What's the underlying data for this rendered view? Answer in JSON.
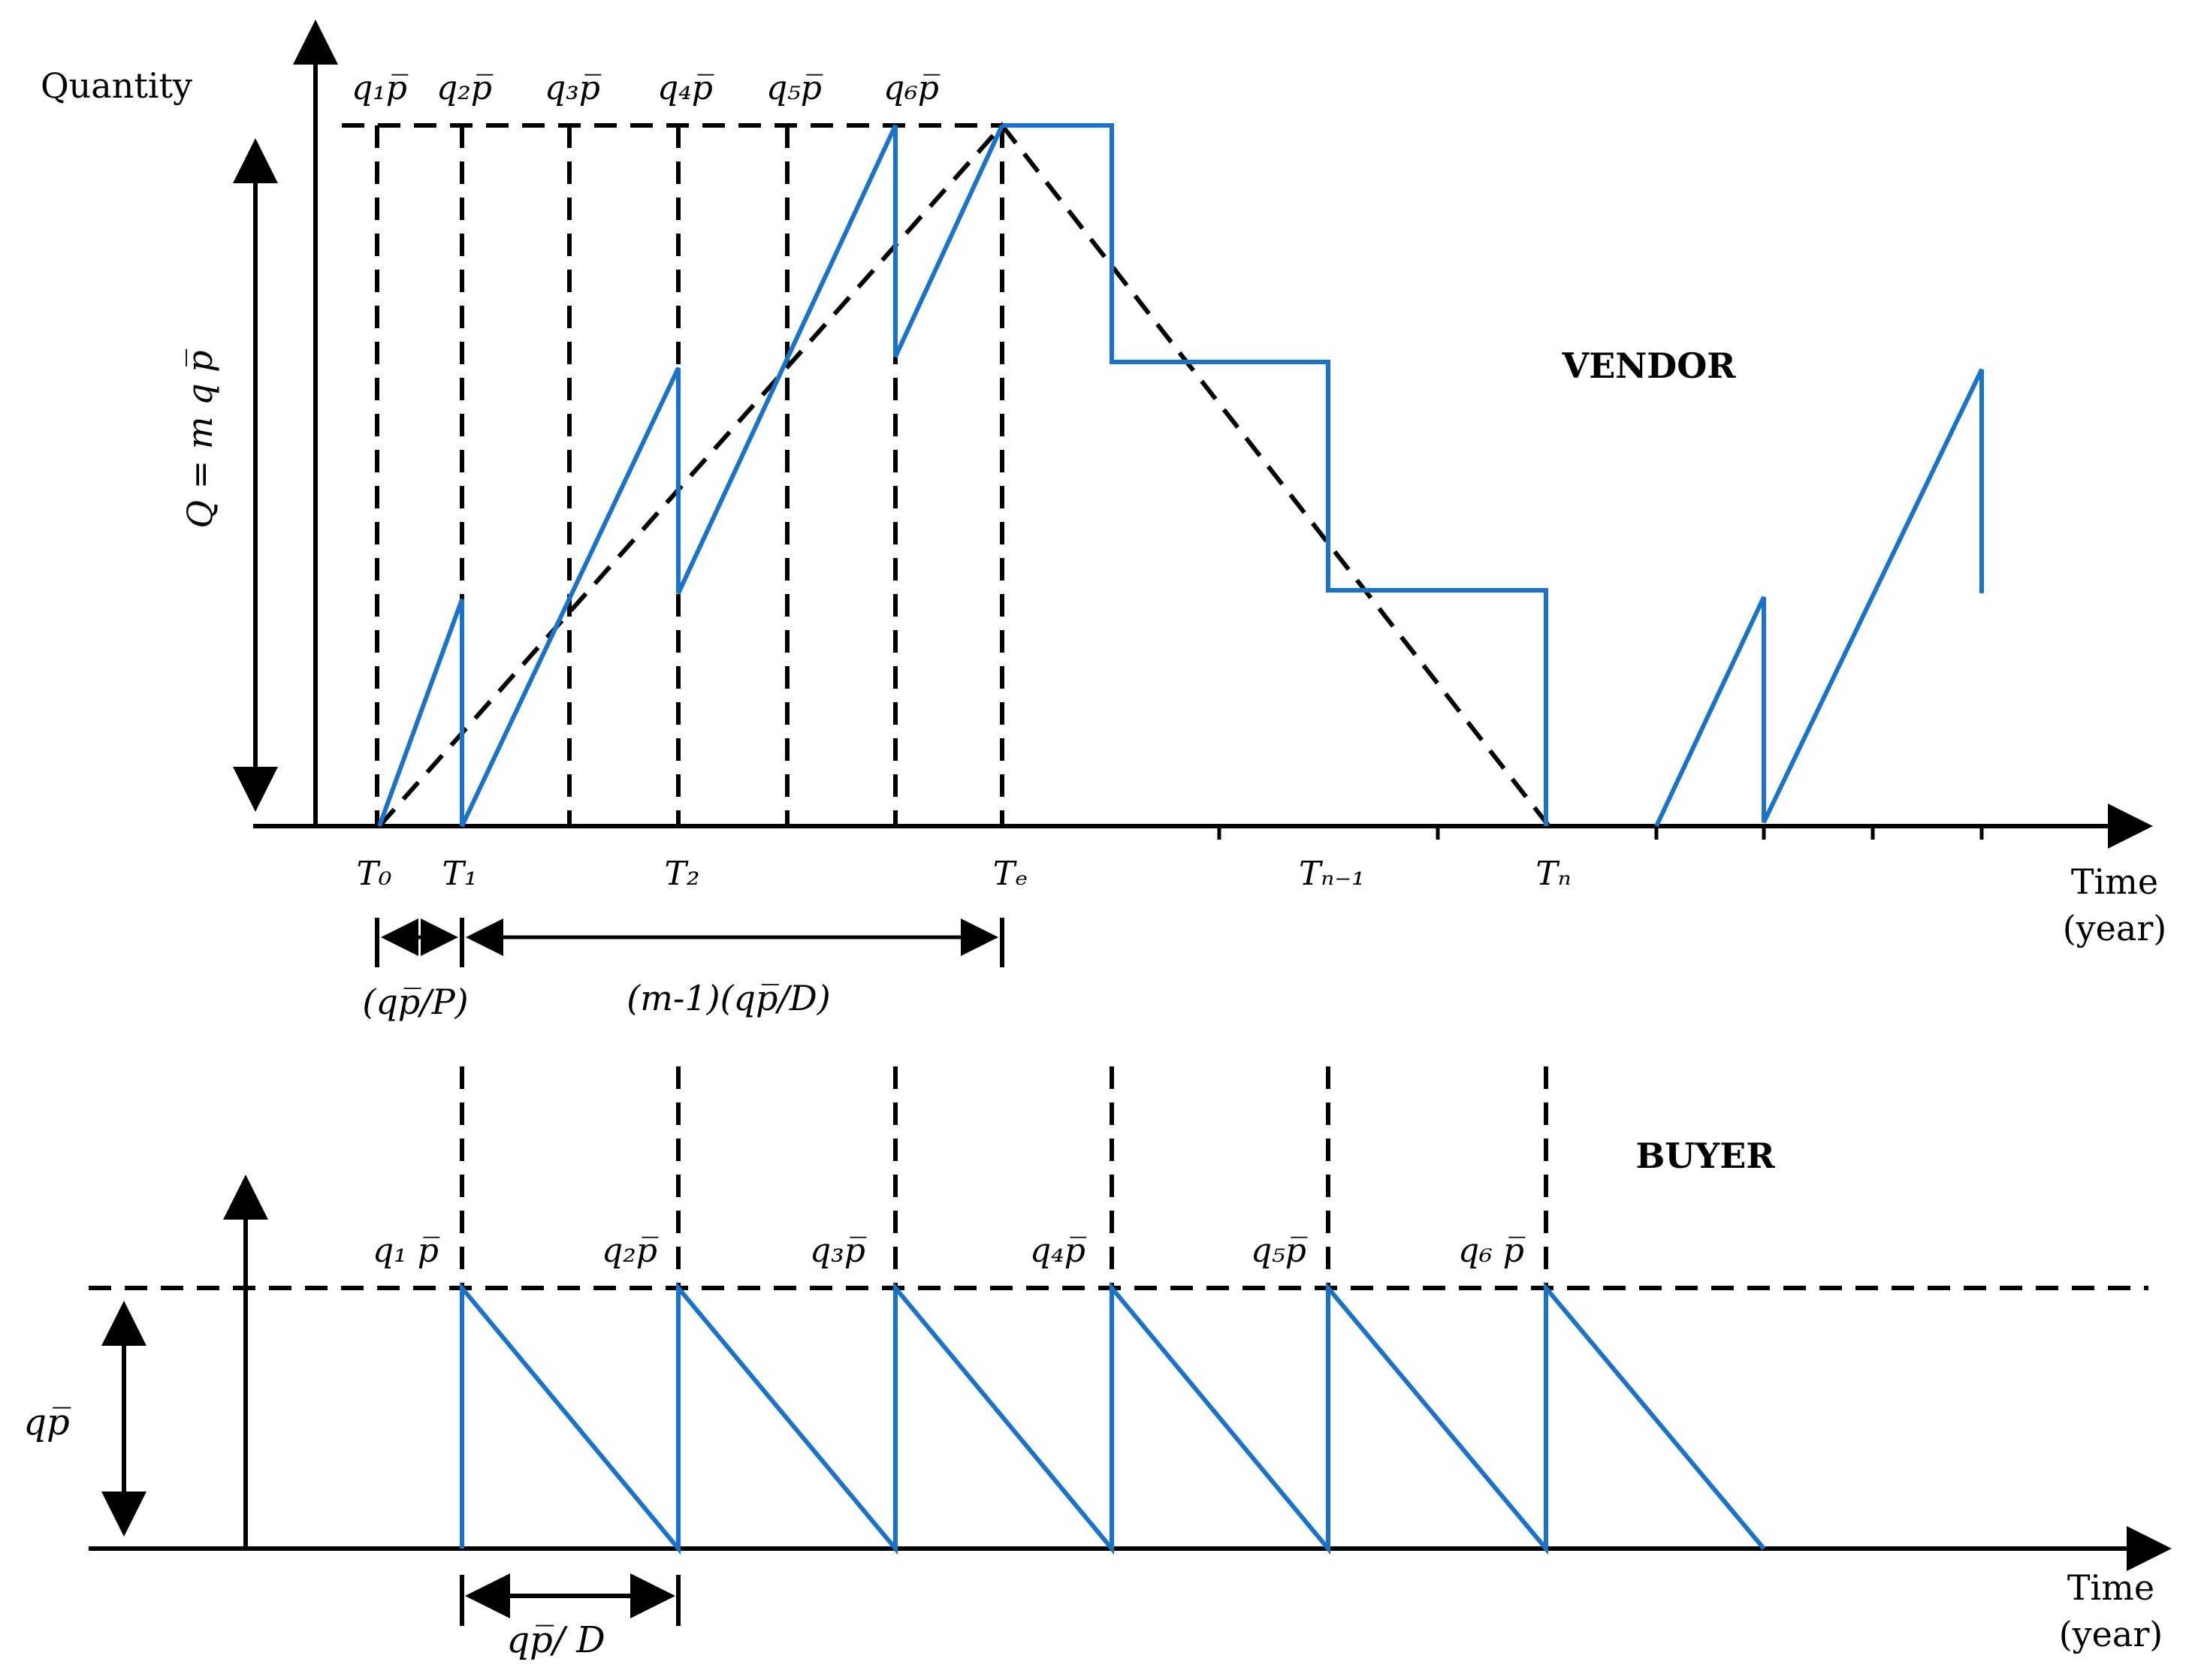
{
  "vendor": {
    "title": "VENDOR",
    "y_axis_label": "Quantity",
    "x_axis_label_line1": "Time",
    "x_axis_label_line2": "(year)",
    "q_top_labels": [
      "q₁p̅",
      "q₂p̅",
      "q₃p̅",
      "q₄p̅",
      "q₅p̅",
      "q₆p̅"
    ],
    "t_labels": {
      "t0": "T₀",
      "t1": "T₁",
      "t2": "T₂",
      "te": "Tₑ",
      "tn1": "Tₙ₋₁",
      "tn": "Tₙ"
    },
    "q_total_label": "Q = m q p̅",
    "interval_1": "(qp̅/P)",
    "interval_2": "(m-1)(qp̅/D)"
  },
  "buyer": {
    "title": "BUYER",
    "x_axis_label_line1": "Time",
    "x_axis_label_line2": "(year)",
    "q_labels": [
      "q₁ p̅",
      "q₂p̅",
      "q₃p̅",
      "q₄p̅",
      "q₅p̅",
      "q₆ p̅"
    ],
    "lot_label": "qp̅",
    "cycle_label": "qp̅/ D"
  },
  "colors": {
    "inventory_line": "#1a73c9",
    "axes": "#000000"
  }
}
